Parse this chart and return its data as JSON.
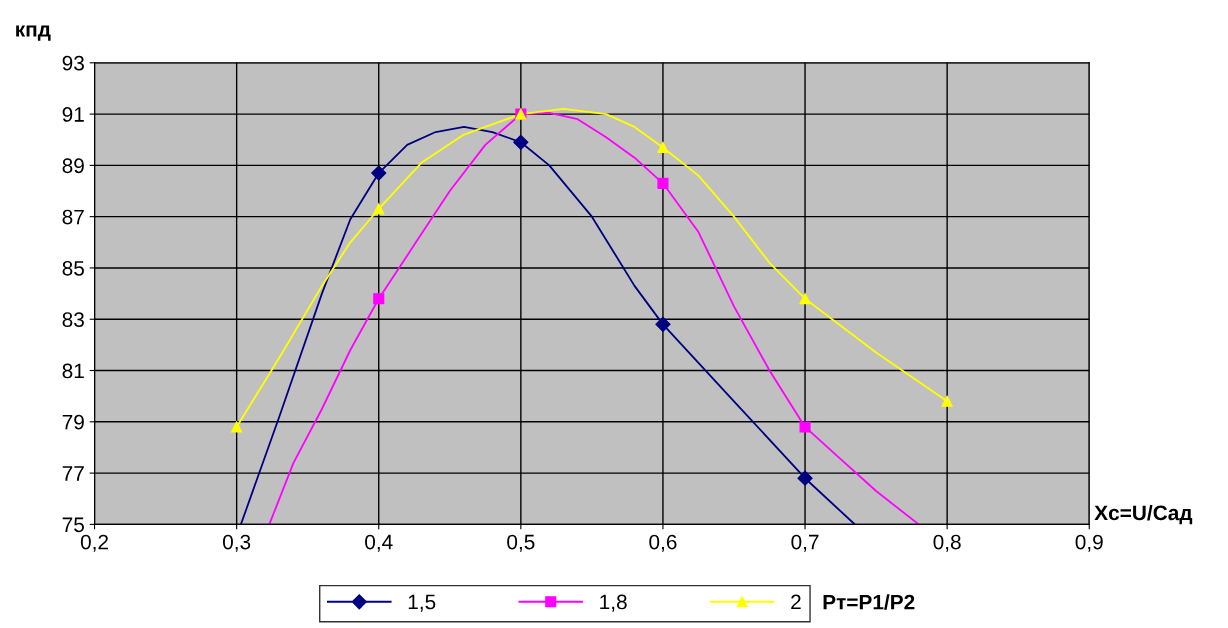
{
  "chart_data": {
    "type": "line",
    "ylabel": "кпд",
    "xlabel": "Xc=U/Cад",
    "legend_title": "Pт=P1/P2",
    "xlim": [
      0.2,
      0.9
    ],
    "xticks": [
      {
        "value": 0.2,
        "label": "0,2"
      },
      {
        "value": 0.3,
        "label": "0,3"
      },
      {
        "value": 0.4,
        "label": "0,4"
      },
      {
        "value": 0.5,
        "label": "0,5"
      },
      {
        "value": 0.6,
        "label": "0,6"
      },
      {
        "value": 0.7,
        "label": "0,7"
      },
      {
        "value": 0.8,
        "label": "0,8"
      },
      {
        "value": 0.9,
        "label": "0,9"
      }
    ],
    "ylim": [
      75,
      93
    ],
    "yticks": [
      75,
      77,
      79,
      81,
      83,
      85,
      87,
      89,
      91,
      93
    ],
    "grid": true,
    "legend": "bottom",
    "line_style": "solid",
    "series": [
      {
        "name": "1,5",
        "color": "#000080",
        "x": [
          0.303,
          0.33,
          0.36,
          0.38,
          0.4,
          0.42,
          0.44,
          0.46,
          0.48,
          0.5,
          0.52,
          0.55,
          0.58,
          0.6,
          0.65,
          0.7,
          0.735
        ],
        "values": [
          75,
          79.2,
          84,
          86.9,
          88.7,
          89.8,
          90.3,
          90.5,
          90.3,
          89.9,
          89.0,
          87,
          84.3,
          82.8,
          79.8,
          76.8,
          75
        ]
      },
      {
        "name": "1,8",
        "color": "#ff00ff",
        "x": [
          0.323,
          0.34,
          0.36,
          0.38,
          0.4,
          0.425,
          0.45,
          0.475,
          0.5,
          0.52,
          0.54,
          0.56,
          0.58,
          0.6,
          0.625,
          0.65,
          0.675,
          0.7,
          0.72,
          0.75,
          0.78
        ],
        "values": [
          75,
          77.4,
          79.5,
          81.8,
          83.8,
          85.9,
          88,
          89.8,
          91.0,
          91.05,
          90.8,
          90.1,
          89.3,
          88.3,
          86.4,
          83.5,
          81.0,
          78.8,
          77.8,
          76.3,
          75
        ]
      },
      {
        "name": "2",
        "color": "#ffff00",
        "x": [
          0.3,
          0.33,
          0.36,
          0.38,
          0.4,
          0.43,
          0.46,
          0.5,
          0.53,
          0.56,
          0.58,
          0.6,
          0.625,
          0.65,
          0.675,
          0.7,
          0.75,
          0.8
        ],
        "values": [
          78.8,
          81.5,
          84.3,
          86.0,
          87.3,
          89.1,
          90.2,
          91.0,
          91.2,
          91.0,
          90.5,
          89.7,
          88.6,
          87.0,
          85.2,
          83.8,
          81.7,
          79.8
        ]
      },
      {
        "type": "scatter",
        "color": "#000080",
        "marker": "diamond",
        "x": [
          0.4,
          0.5,
          0.6,
          0.7
        ],
        "values": [
          88.7,
          89.9,
          82.8,
          76.8
        ]
      },
      {
        "type": "scatter",
        "color": "#ff00ff",
        "marker": "square",
        "x": [
          0.4,
          0.5,
          0.6,
          0.7
        ],
        "values": [
          83.8,
          91.0,
          88.3,
          78.8
        ]
      },
      {
        "type": "scatter",
        "color": "#ffff00",
        "marker": "triangle",
        "x": [
          0.3,
          0.4,
          0.5,
          0.6,
          0.7,
          0.8
        ],
        "values": [
          78.8,
          87.3,
          91.0,
          89.7,
          83.8,
          79.8
        ]
      }
    ]
  }
}
